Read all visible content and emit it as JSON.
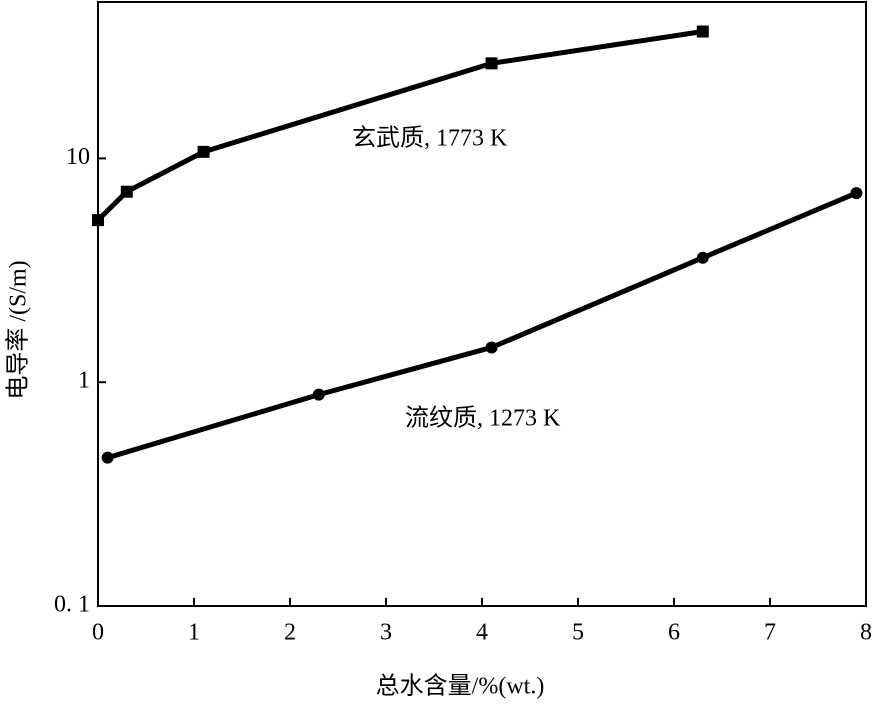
{
  "chart_data": {
    "type": "line",
    "y_scale": "log",
    "x_label": "总水含量/%(wt.)",
    "y_label": "电导率 /(S/m)",
    "xlim": [
      0,
      8
    ],
    "xticks": [
      0,
      1,
      2,
      3,
      4,
      5,
      6,
      7,
      8
    ],
    "ylim": [
      0.1,
      50
    ],
    "yticks": [
      {
        "value": 0.1,
        "label": "0. 1"
      },
      1,
      10
    ],
    "grid": false,
    "series": [
      {
        "name": "玄武质, 1773 K",
        "color": "#000000",
        "marker": "square",
        "x": [
          0,
          0.3,
          1.1,
          4.1,
          6.3
        ],
        "values": [
          5.3,
          7.1,
          10.7,
          26.6,
          36.9
        ]
      },
      {
        "name": "流纹质, 1273 K",
        "color": "#000000",
        "marker": "circle",
        "x": [
          0.1,
          2.3,
          4.1,
          6.3,
          7.9
        ],
        "values": [
          0.46,
          0.88,
          1.43,
          3.6,
          7.0
        ]
      }
    ]
  }
}
